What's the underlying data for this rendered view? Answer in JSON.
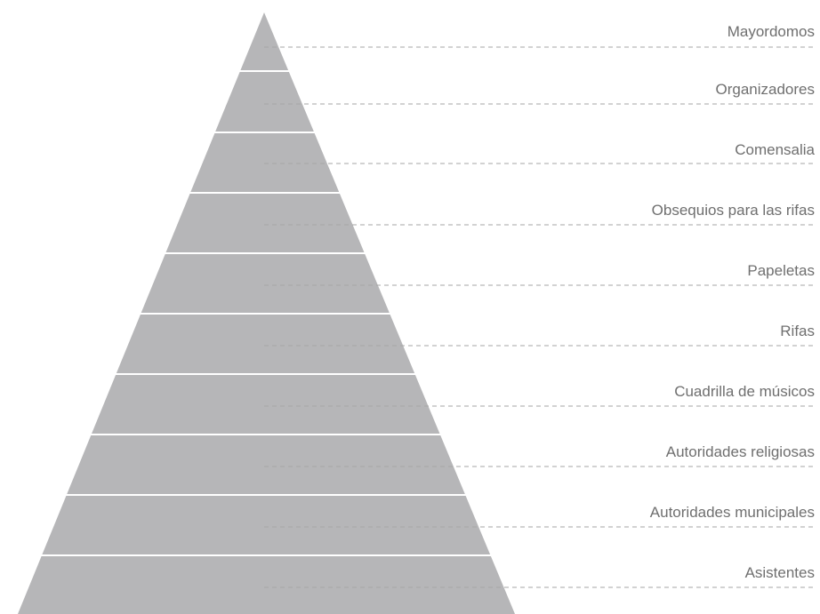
{
  "pyramid": {
    "fill_color": "#b6b6b8",
    "separator_color": "#ffffff",
    "leader_line_color": "#a6a6a6",
    "label_color": "#6f6f6f",
    "tiers": [
      {
        "label": "Mayordomos"
      },
      {
        "label": "Organizadores"
      },
      {
        "label": "Comensalia"
      },
      {
        "label": "Obsequios para las rifas"
      },
      {
        "label": "Papeletas"
      },
      {
        "label": "Rifas"
      },
      {
        "label": "Cuadrilla de músicos"
      },
      {
        "label": "Autoridades religiosas"
      },
      {
        "label": "Autoridades municipales"
      },
      {
        "label": "Asistentes"
      }
    ]
  }
}
